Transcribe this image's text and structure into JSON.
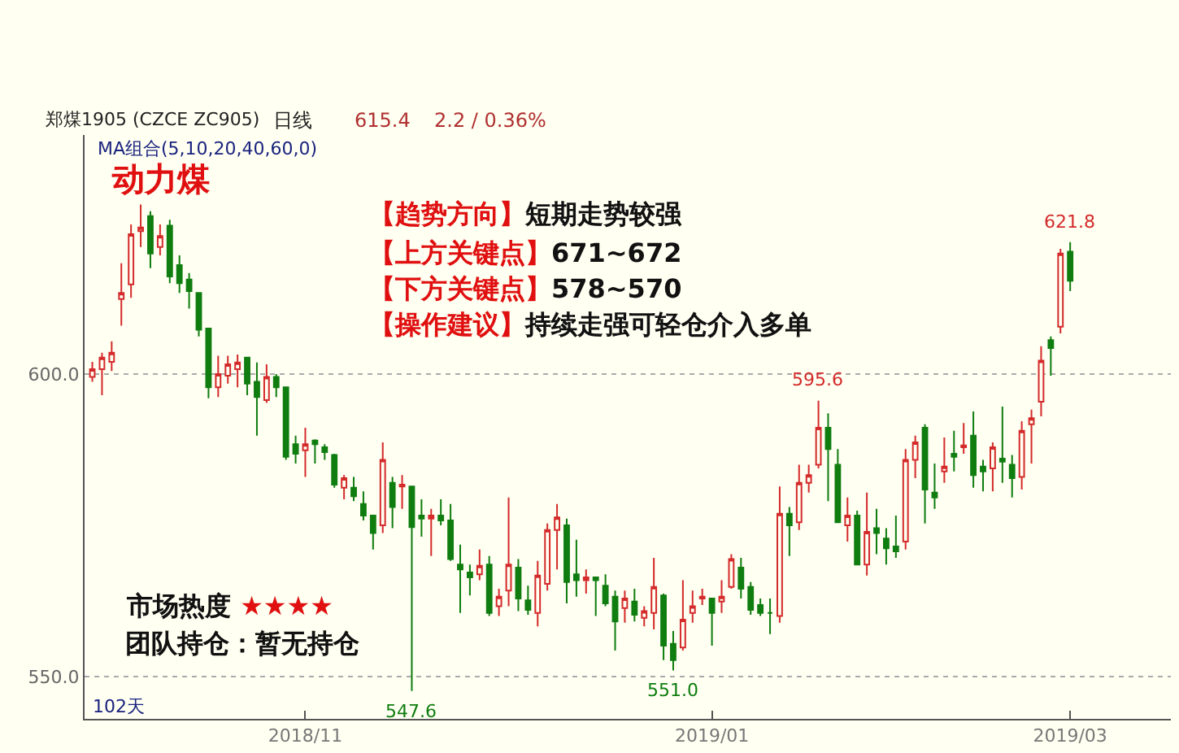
{
  "chart_data": {
    "type": "candlestick",
    "title": "郑煤1905 (CZCE ZC905)",
    "categories": [
      null,
      null,
      null,
      null,
      null,
      null,
      null,
      null,
      null,
      null,
      null,
      null,
      null,
      null,
      null,
      null,
      null,
      null,
      null,
      null,
      null,
      null,
      "2018/11",
      null,
      null,
      null,
      null,
      null,
      null,
      null,
      null,
      null,
      null,
      null,
      null,
      null,
      null,
      null,
      null,
      null,
      null,
      null,
      null,
      null,
      null,
      null,
      null,
      null,
      null,
      null,
      null,
      null,
      null,
      null,
      null,
      null,
      null,
      null,
      null,
      null,
      null,
      null,
      null,
      null,
      "2019/01",
      null,
      null,
      null,
      null,
      null,
      null,
      null,
      null,
      null,
      null,
      null,
      null,
      null,
      null,
      null,
      null,
      null,
      null,
      null,
      null,
      null,
      null,
      null,
      null,
      null,
      null,
      null,
      null,
      null,
      null,
      null,
      null,
      null,
      null,
      null,
      null,
      "2019/03"
    ],
    "ohlc": [
      [
        599.5,
        602,
        598.7,
        600.8
      ],
      [
        600.8,
        603.5,
        596.5,
        602.7
      ],
      [
        602,
        605.4,
        600.5,
        603.5
      ],
      [
        612.4,
        618.3,
        608,
        613.4
      ],
      [
        614.8,
        624.7,
        612.6,
        623.1
      ],
      [
        623.6,
        628,
        621,
        624.2
      ],
      [
        626.1,
        626.9,
        617.5,
        619.9
      ],
      [
        621,
        624.7,
        619.6,
        622.8
      ],
      [
        624.5,
        625.5,
        615,
        616.1
      ],
      [
        618,
        619.6,
        613.4,
        615
      ],
      [
        615.6,
        616.7,
        610.8,
        613.7
      ],
      [
        613.4,
        613.4,
        606.2,
        607.3
      ],
      [
        607.5,
        607.5,
        596,
        597.8
      ],
      [
        597.8,
        603,
        596.2,
        600
      ],
      [
        599.7,
        603,
        598.4,
        601.6
      ],
      [
        600.8,
        603.2,
        597.8,
        601.9
      ],
      [
        602.7,
        602.7,
        596.5,
        598.4
      ],
      [
        598.7,
        601.9,
        589.8,
        596.2
      ],
      [
        595.7,
        601.6,
        595.2,
        599.5
      ],
      [
        599.5,
        600,
        596.2,
        597.8
      ],
      [
        597.8,
        597.8,
        585.8,
        586.3
      ],
      [
        588.4,
        589.8,
        585.2,
        586.8
      ],
      [
        587.4,
        591.1,
        583,
        588.4
      ],
      [
        589,
        589.2,
        585.2,
        588.4
      ],
      [
        587.9,
        588.4,
        585.8,
        587.1
      ],
      [
        586.6,
        586.8,
        581.2,
        581.7
      ],
      [
        581.2,
        583.3,
        579.3,
        582.8
      ],
      [
        581.2,
        583,
        579,
        579.8
      ],
      [
        578.5,
        580.6,
        575.8,
        576.6
      ],
      [
        576.6,
        576.6,
        571,
        573.7
      ],
      [
        575,
        588.7,
        573.7,
        585.8
      ],
      [
        582,
        583,
        574.5,
        578
      ],
      [
        581.4,
        583.3,
        577.7,
        581.7
      ],
      [
        581.4,
        581.4,
        547.6,
        574.7
      ],
      [
        576.6,
        579.3,
        573.1,
        576.1
      ],
      [
        576.1,
        577.7,
        569.9,
        576.6
      ],
      [
        576.6,
        579.3,
        575,
        575.8
      ],
      [
        575.8,
        578.5,
        569.1,
        569.4
      ],
      [
        568.5,
        571.8,
        560.5,
        567.7
      ],
      [
        567.2,
        568.5,
        563.4,
        566.4
      ],
      [
        566.9,
        571,
        565.9,
        568.3
      ],
      [
        568.5,
        569.9,
        560,
        560.5
      ],
      [
        561.6,
        564.5,
        560,
        563.2
      ],
      [
        564.2,
        579.6,
        561.6,
        568.5
      ],
      [
        568,
        569.4,
        560.8,
        562.9
      ],
      [
        562.6,
        565,
        560.2,
        561
      ],
      [
        560.5,
        569.1,
        558.3,
        566.7
      ],
      [
        565.3,
        575.3,
        564.2,
        574.2
      ],
      [
        574.2,
        578.5,
        567.7,
        576.3
      ],
      [
        575,
        576.1,
        562.1,
        565.6
      ],
      [
        566.9,
        572.6,
        563.2,
        565.9
      ],
      [
        565.9,
        567.7,
        563.7,
        566.4
      ],
      [
        566.4,
        566.4,
        560,
        565.9
      ],
      [
        565,
        566.9,
        561.6,
        562.1
      ],
      [
        563.2,
        564.2,
        554.3,
        559.1
      ],
      [
        561.3,
        564.2,
        558.9,
        562.9
      ],
      [
        562.4,
        564.5,
        559.1,
        560.2
      ],
      [
        559.7,
        561.6,
        558.3,
        560.8
      ],
      [
        560.5,
        569.6,
        557.8,
        564.8
      ],
      [
        563.4,
        563.7,
        552.7,
        555.1
      ],
      [
        555.4,
        557.5,
        551.0,
        552.7
      ],
      [
        554.8,
        565.9,
        554.3,
        559.4
      ],
      [
        560.5,
        564.2,
        558.9,
        561.6
      ],
      [
        562.9,
        564.5,
        561.8,
        563.2
      ],
      [
        562.9,
        562.9,
        555.1,
        560.5
      ],
      [
        562.4,
        565.9,
        560.5,
        563.2
      ],
      [
        564.8,
        570.2,
        564.5,
        569.4
      ],
      [
        568,
        569.6,
        562.9,
        564.5
      ],
      [
        564.8,
        565.6,
        560.2,
        561
      ],
      [
        561.8,
        562.9,
        560,
        560.5
      ],
      [
        560.5,
        562.9,
        557,
        560.5
      ],
      [
        560,
        581.4,
        558.9,
        576.9
      ],
      [
        576.9,
        578,
        569.9,
        575
      ],
      [
        575.5,
        585,
        574.2,
        582
      ],
      [
        582,
        585,
        580.4,
        583.3
      ],
      [
        585,
        595.6,
        584.4,
        591.1
      ],
      [
        591.1,
        593.5,
        579,
        587.6
      ],
      [
        585,
        587.6,
        575.5,
        575.5
      ],
      [
        575,
        579.6,
        572.3,
        576.6
      ],
      [
        576.6,
        577.4,
        568.5,
        568.5
      ],
      [
        568.5,
        580.4,
        566.7,
        573.9
      ],
      [
        574.5,
        577.7,
        570.2,
        573.7
      ],
      [
        572.8,
        574.5,
        568.5,
        571.2
      ],
      [
        571.5,
        576.6,
        569.6,
        570.7
      ],
      [
        572.3,
        587.6,
        571,
        585.8
      ],
      [
        585.8,
        589.8,
        582.8,
        588.7
      ],
      [
        591.1,
        591.7,
        575.3,
        580.9
      ],
      [
        580.4,
        585.2,
        577.7,
        579.6
      ],
      [
        583.9,
        589.5,
        582,
        584.7
      ],
      [
        586.8,
        590.6,
        583.9,
        586.3
      ],
      [
        587.9,
        591.9,
        586.8,
        588.2
      ],
      [
        589.8,
        593.8,
        581.2,
        583.3
      ],
      [
        584.7,
        585.8,
        580.6,
        583.9
      ],
      [
        584.4,
        588.7,
        580.6,
        587.9
      ],
      [
        586,
        594.6,
        582,
        585.5
      ],
      [
        585,
        586.6,
        579.6,
        582.8
      ],
      [
        583,
        592.2,
        580.9,
        590.6
      ],
      [
        591.7,
        594.1,
        585.2,
        592.7
      ],
      [
        595.4,
        604.6,
        593,
        602.2
      ],
      [
        605.6,
        606.2,
        599.7,
        604.3
      ],
      [
        607.8,
        620.7,
        606.7,
        619.9
      ],
      [
        620.2,
        621.8,
        613.7,
        615.4
      ]
    ],
    "colors": [
      "#d42a2a",
      "#d42a2a",
      "#d42a2a",
      "#d42a2a",
      "#d42a2a",
      "#d42a2a",
      "#0f7d0f",
      "#d42a2a",
      "#0f7d0f",
      "#0f7d0f",
      "#0f7d0f",
      "#0f7d0f",
      "#0f7d0f",
      "#d42a2a",
      "#d42a2a",
      "#d42a2a",
      "#0f7d0f",
      "#0f7d0f",
      "#d42a2a",
      "#0f7d0f",
      "#0f7d0f",
      "#0f7d0f",
      "#d42a2a",
      "#0f7d0f",
      "#0f7d0f",
      "#0f7d0f",
      "#d42a2a",
      "#0f7d0f",
      "#0f7d0f",
      "#0f7d0f",
      "#d42a2a",
      "#0f7d0f",
      "#d42a2a",
      "#0f7d0f",
      "#0f7d0f",
      "#d42a2a",
      "#0f7d0f",
      "#0f7d0f",
      "#0f7d0f",
      "#0f7d0f",
      "#d42a2a",
      "#0f7d0f",
      "#d42a2a",
      "#d42a2a",
      "#0f7d0f",
      "#0f7d0f",
      "#d42a2a",
      "#d42a2a",
      "#d42a2a",
      "#0f7d0f",
      "#0f7d0f",
      "#d42a2a",
      "#0f7d0f",
      "#0f7d0f",
      "#0f7d0f",
      "#d42a2a",
      "#0f7d0f",
      "#d42a2a",
      "#d42a2a",
      "#0f7d0f",
      "#0f7d0f",
      "#d42a2a",
      "#d42a2a",
      "#d42a2a",
      "#0f7d0f",
      "#d42a2a",
      "#d42a2a",
      "#0f7d0f",
      "#0f7d0f",
      "#0f7d0f",
      "#0f7d0f",
      "#d42a2a",
      "#0f7d0f",
      "#d42a2a",
      "#d42a2a",
      "#d42a2a",
      "#0f7d0f",
      "#0f7d0f",
      "#d42a2a",
      "#0f7d0f",
      "#d42a2a",
      "#0f7d0f",
      "#0f7d0f",
      "#0f7d0f",
      "#d42a2a",
      "#d42a2a",
      "#0f7d0f",
      "#0f7d0f",
      "#d42a2a",
      "#0f7d0f",
      "#d42a2a",
      "#0f7d0f",
      "#0f7d0f",
      "#d42a2a",
      "#0f7d0f",
      "#0f7d0f",
      "#d42a2a",
      "#d42a2a",
      "#d42a2a",
      "#0f7d0f",
      "#d42a2a",
      "#0f7d0f"
    ],
    "ylim": [
      543.0,
      639.5
    ],
    "yticks": [
      {
        "value": 550,
        "label": "550.0"
      },
      {
        "value": 600,
        "label": "600.0"
      }
    ],
    "grid": "y",
    "annotations": [
      "日线",
      "615.4",
      "2.2 / 0.36%",
      "MA组合(5,10,20,40,60,0)",
      "动力煤",
      "【趋势方向】短期走势较强",
      "【上方关键点】671~672",
      "【下方关键点】578~570",
      "【操作建议】持续走强可轻仓介入多单",
      "市场热度 ★★★★",
      "团队持仓：暂无持仓",
      "102天",
      {
        "text": "621.8",
        "x": "2019/03",
        "y": 621.8
      },
      {
        "text": "595.6",
        "y": 595.6
      },
      {
        "text": "551.0",
        "y": 551.0
      },
      {
        "text": "547.6",
        "y": 547.6
      }
    ]
  }
}
